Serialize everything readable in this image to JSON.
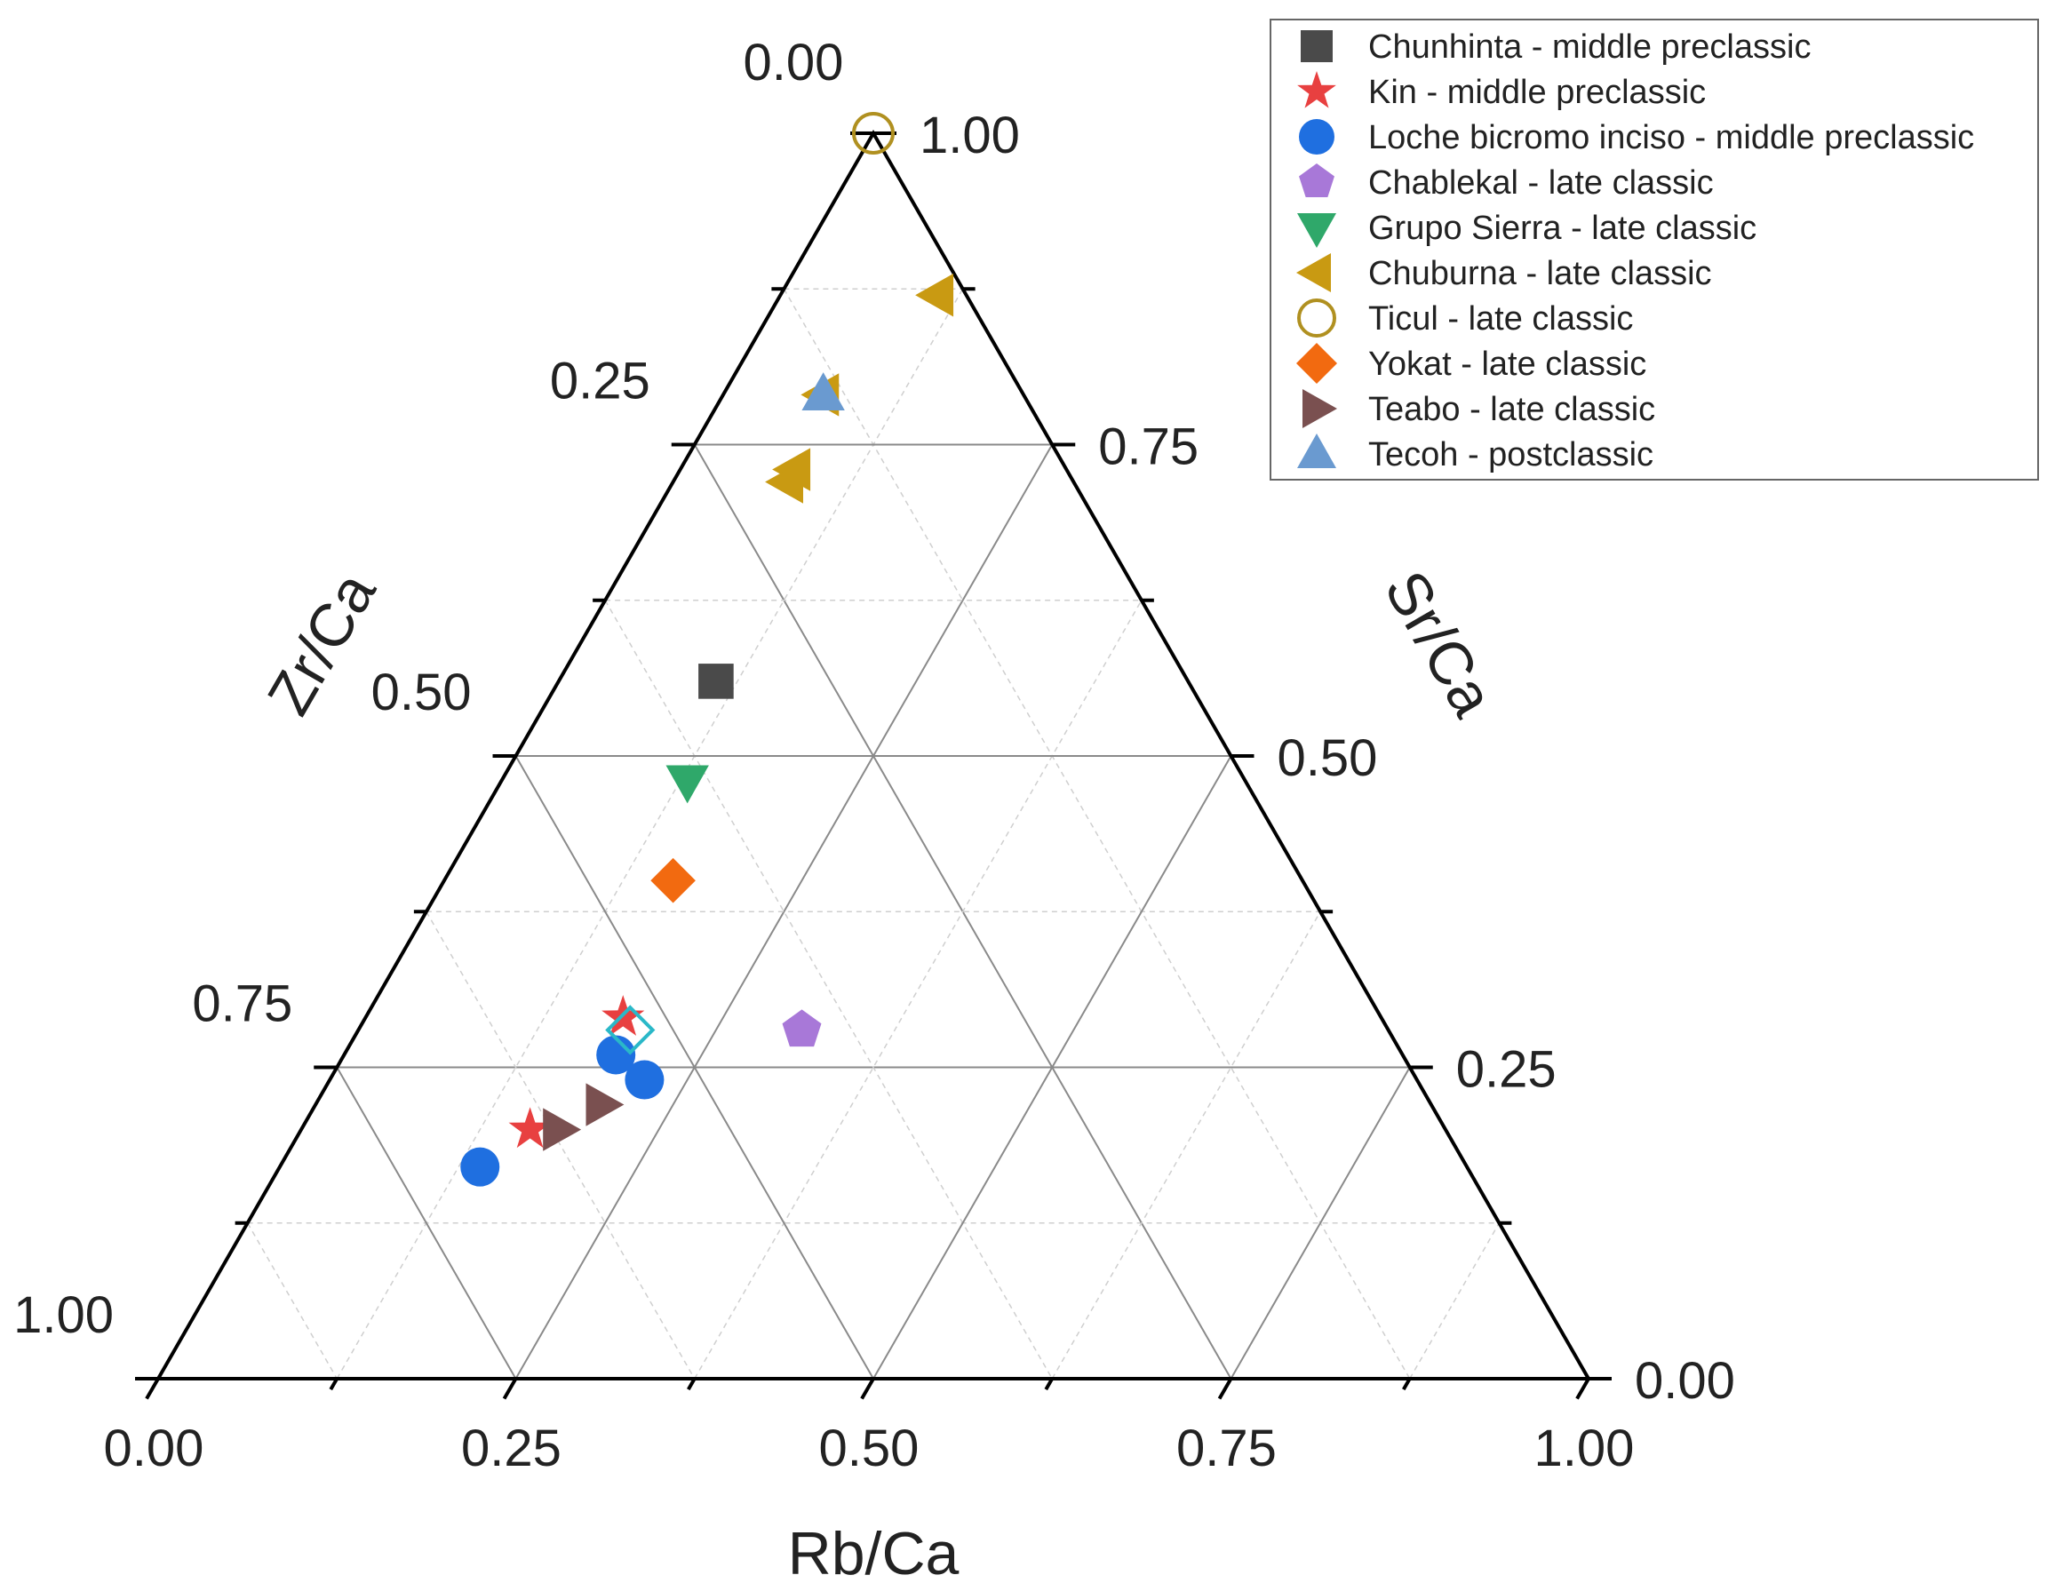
{
  "chart_data": {
    "type": "scatter",
    "subtype": "ternary",
    "title": "",
    "axes": {
      "bottom": {
        "label": "Rb/Ca",
        "ticks": [
          "0.00",
          "0.25",
          "0.50",
          "0.75",
          "1.00"
        ]
      },
      "left": {
        "label": "Zr/Ca",
        "ticks": [
          "0.25",
          "0.50",
          "0.75",
          "1.00"
        ]
      },
      "right": {
        "label": "Sr/Ca",
        "ticks": [
          "0.00",
          "0.25",
          "0.50",
          "0.75",
          "1.00"
        ]
      },
      "top_label": "0.00"
    },
    "grid": true,
    "legend_position": "top-right",
    "series": [
      {
        "name": "Chunhinta - middle preclassic",
        "shape": "square",
        "color": "#4a4a4a",
        "filled": true,
        "points": [
          {
            "rb": 0.11,
            "sr": 0.56,
            "zr": 0.33
          }
        ]
      },
      {
        "name": "Kin - middle preclassic",
        "shape": "star",
        "color": "#e84040",
        "filled": true,
        "points": [
          {
            "rb": 0.18,
            "sr": 0.29,
            "zr": 0.53
          },
          {
            "rb": 0.16,
            "sr": 0.2,
            "zr": 0.64
          }
        ]
      },
      {
        "name": "Loche bicromo inciso - middle preclassic",
        "shape": "circle",
        "color": "#1f6fe0",
        "filled": true,
        "points": [
          {
            "rb": 0.19,
            "sr": 0.26,
            "zr": 0.55
          },
          {
            "rb": 0.22,
            "sr": 0.24,
            "zr": 0.54
          },
          {
            "rb": 0.14,
            "sr": 0.17,
            "zr": 0.69
          }
        ]
      },
      {
        "name": "Chablekal - late classic",
        "shape": "pentagon",
        "color": "#a878d8",
        "filled": true,
        "points": [
          {
            "rb": 0.31,
            "sr": 0.28,
            "zr": 0.41
          }
        ]
      },
      {
        "name": "Grupo Sierra - late classic",
        "shape": "triangle-down",
        "color": "#2fa86a",
        "filled": true,
        "points": [
          {
            "rb": 0.13,
            "sr": 0.48,
            "zr": 0.39
          }
        ]
      },
      {
        "name": "Chuburna - late classic",
        "shape": "triangle-left",
        "color": "#c99a12",
        "filled": true,
        "points": [
          {
            "rb": 0.11,
            "sr": 0.87,
            "zr": 0.02
          },
          {
            "rb": 0.07,
            "sr": 0.79,
            "zr": 0.14
          },
          {
            "rb": 0.08,
            "sr": 0.73,
            "zr": 0.19
          },
          {
            "rb": 0.08,
            "sr": 0.72,
            "zr": 0.2
          }
        ]
      },
      {
        "name": "Ticul - late classic",
        "shape": "circle",
        "color": "#b09020",
        "filled": false,
        "points": [
          {
            "rb": 0.0,
            "sr": 1.0,
            "zr": 0.0
          }
        ]
      },
      {
        "name": "Yokat - late classic",
        "shape": "diamond",
        "color": "#f26a10",
        "filled": true,
        "points": [
          {
            "rb": 0.16,
            "sr": 0.4,
            "zr": 0.44
          }
        ]
      },
      {
        "name": "Teabo - late classic",
        "shape": "triangle-right",
        "color": "#7a5050",
        "filled": true,
        "points": [
          {
            "rb": 0.2,
            "sr": 0.22,
            "zr": 0.58
          },
          {
            "rb": 0.18,
            "sr": 0.2,
            "zr": 0.62
          }
        ]
      },
      {
        "name": "Tecoh - postclassic",
        "shape": "triangle-up",
        "color": "#6a9ad0",
        "filled": true,
        "points": [
          {
            "rb": 0.07,
            "sr": 0.79,
            "zr": 0.14
          }
        ]
      }
    ],
    "extra_markers": [
      {
        "shape": "diamond",
        "color": "#2ab8c8",
        "filled": false,
        "point": {
          "rb": 0.19,
          "sr": 0.28,
          "zr": 0.53
        }
      }
    ]
  }
}
